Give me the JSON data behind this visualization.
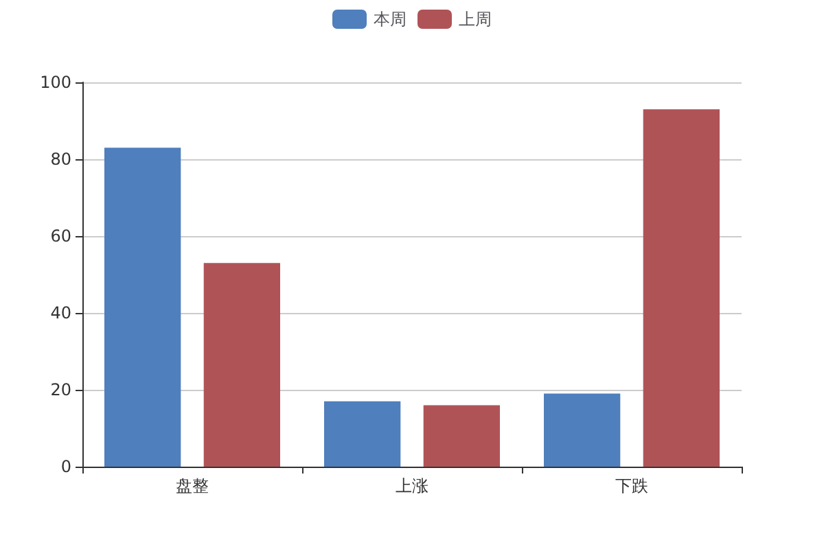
{
  "chart_data": {
    "type": "bar",
    "categories": [
      "盘整",
      "上涨",
      "下跌"
    ],
    "series": [
      {
        "name": "本周",
        "color": "#4f7fbc",
        "values": [
          83,
          17,
          19
        ]
      },
      {
        "name": "上周",
        "color": "#b05357",
        "values": [
          53,
          16,
          93
        ]
      }
    ],
    "ylim": [
      0,
      100
    ],
    "yticks": [
      0,
      20,
      40,
      60,
      80,
      100
    ],
    "grid": "y",
    "legend": "top"
  }
}
